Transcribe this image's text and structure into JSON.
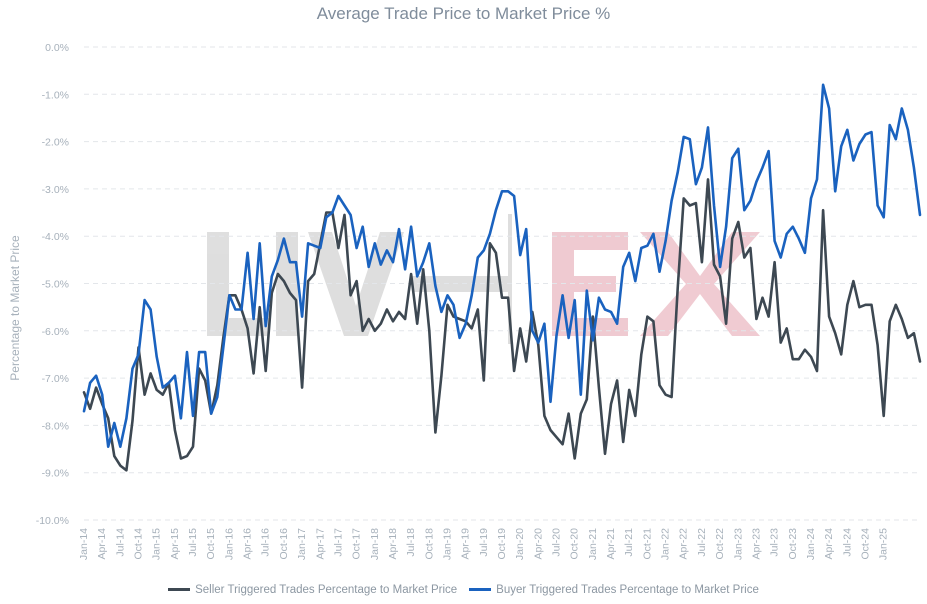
{
  "chart_data": {
    "type": "line",
    "title": "Average Trade Price to Market Price %",
    "ylabel": "Percentage to Market Price",
    "xlabel": "",
    "ylim": [
      -10.0,
      0.0
    ],
    "y_ticks": [
      "0.0%",
      "-1.0%",
      "-2.0%",
      "-3.0%",
      "-4.0%",
      "-5.0%",
      "-6.0%",
      "-7.0%",
      "-8.0%",
      "-9.0%",
      "-10.0%"
    ],
    "x_ticks": [
      "Jan-14",
      "Apr-14",
      "Jul-14",
      "Oct-14",
      "Jan-15",
      "Apr-15",
      "Jul-15",
      "Oct-15",
      "Jan-16",
      "Apr-16",
      "Jul-16",
      "Oct-16",
      "Jan-17",
      "Apr-17",
      "Jul-17",
      "Oct-17",
      "Jan-18",
      "Apr-18",
      "Jul-18",
      "Oct-18",
      "Jan-19",
      "Apr-19",
      "Jul-19",
      "Oct-19",
      "Jan-20",
      "Apr-20",
      "Jul-20",
      "Oct-20",
      "Jan-21",
      "Apr-21",
      "Jul-21",
      "Oct-21",
      "Jan-22",
      "Apr-22",
      "Jul-22",
      "Oct-22",
      "Jan-23",
      "Apr-23",
      "Jul-23",
      "Oct-23",
      "Jan-24",
      "Apr-24",
      "Jul-24",
      "Oct-24",
      "Jan-25"
    ],
    "x_start": "Jan-14",
    "grid": true,
    "legend_position": "bottom",
    "watermark": "LIV-EX",
    "series": [
      {
        "name": "Seller Triggered Trades Percentage to Market Price",
        "color": "#3d4852",
        "values": [
          -7.3,
          -7.65,
          -7.2,
          -7.55,
          -7.85,
          -8.65,
          -8.85,
          -8.95,
          -7.9,
          -6.35,
          -7.35,
          -6.9,
          -7.25,
          -7.35,
          -7.1,
          -8.1,
          -8.7,
          -8.65,
          -8.45,
          -6.8,
          -7.05,
          -7.75,
          -7.15,
          -6.15,
          -5.25,
          -5.25,
          -5.55,
          -5.95,
          -6.9,
          -5.5,
          -6.85,
          -5.2,
          -4.8,
          -4.95,
          -5.2,
          -5.35,
          -7.2,
          -4.95,
          -4.8,
          -4.15,
          -3.5,
          -3.5,
          -4.25,
          -3.55,
          -5.25,
          -4.95,
          -6.0,
          -5.75,
          -6.0,
          -5.85,
          -5.55,
          -5.8,
          -5.6,
          -5.75,
          -4.8,
          -5.85,
          -4.7,
          -6.0,
          -8.15,
          -6.95,
          -5.45,
          -5.7,
          -5.75,
          -5.8,
          -5.95,
          -5.55,
          -7.05,
          -4.15,
          -4.35,
          -5.3,
          -5.3,
          -6.85,
          -5.95,
          -6.65,
          -5.6,
          -6.3,
          -7.8,
          -8.1,
          -8.25,
          -8.4,
          -7.75,
          -8.7,
          -7.75,
          -7.45,
          -5.7,
          -7.2,
          -8.6,
          -7.55,
          -7.05,
          -8.35,
          -7.25,
          -7.8,
          -6.5,
          -5.7,
          -5.8,
          -7.15,
          -7.35,
          -7.4,
          -5.1,
          -3.2,
          -3.35,
          -3.3,
          -4.55,
          -2.8,
          -4.6,
          -4.85,
          -5.85,
          -4.05,
          -3.7,
          -4.45,
          -4.25,
          -5.75,
          -5.3,
          -5.7,
          -4.55,
          -6.25,
          -5.95,
          -6.6,
          -6.6,
          -6.4,
          -6.55,
          -6.85,
          -3.45,
          -5.7,
          -6.05,
          -6.5,
          -5.45,
          -4.95,
          -5.5,
          -5.45,
          -5.45,
          -6.3,
          -7.8,
          -5.8,
          -5.45,
          -5.75,
          -6.15,
          -6.05,
          -6.65
        ]
      },
      {
        "name": "Buyer Triggered Trades Percentage to Market Price",
        "color": "#1a62bf",
        "values": [
          -7.7,
          -7.1,
          -6.95,
          -7.35,
          -8.45,
          -7.95,
          -8.45,
          -7.85,
          -6.8,
          -6.5,
          -5.35,
          -5.55,
          -6.55,
          -7.2,
          -7.1,
          -6.95,
          -7.85,
          -6.45,
          -7.8,
          -6.45,
          -6.45,
          -7.75,
          -7.4,
          -6.35,
          -5.25,
          -5.55,
          -5.55,
          -4.35,
          -5.75,
          -4.15,
          -5.9,
          -4.85,
          -4.5,
          -4.05,
          -4.55,
          -4.55,
          -5.7,
          -4.15,
          -4.2,
          -4.25,
          -3.6,
          -3.5,
          -3.15,
          -3.35,
          -3.55,
          -4.25,
          -3.8,
          -4.65,
          -4.15,
          -4.6,
          -4.3,
          -4.55,
          -3.85,
          -4.7,
          -3.8,
          -4.85,
          -4.55,
          -4.15,
          -5.05,
          -5.6,
          -5.25,
          -5.45,
          -6.15,
          -5.85,
          -5.25,
          -4.45,
          -4.3,
          -3.95,
          -3.45,
          -3.05,
          -3.05,
          -3.15,
          -4.4,
          -3.85,
          -6.0,
          -6.25,
          -5.85,
          -7.5,
          -6.1,
          -5.25,
          -6.15,
          -5.35,
          -7.35,
          -5.15,
          -6.2,
          -5.3,
          -5.55,
          -5.6,
          -5.85,
          -4.65,
          -4.35,
          -4.95,
          -4.25,
          -4.2,
          -3.95,
          -4.75,
          -4.1,
          -3.25,
          -2.65,
          -1.9,
          -1.95,
          -2.9,
          -2.55,
          -1.7,
          -3.35,
          -4.65,
          -3.8,
          -2.35,
          -2.15,
          -3.45,
          -3.25,
          -2.85,
          -2.55,
          -2.2,
          -4.1,
          -4.45,
          -3.95,
          -3.8,
          -4.05,
          -4.35,
          -3.2,
          -2.8,
          -0.8,
          -1.3,
          -3.05,
          -2.1,
          -1.75,
          -2.4,
          -2.05,
          -1.85,
          -1.8,
          -3.35,
          -3.6,
          -1.65,
          -1.95,
          -1.3,
          -1.75,
          -2.55,
          -3.55
        ]
      }
    ]
  }
}
